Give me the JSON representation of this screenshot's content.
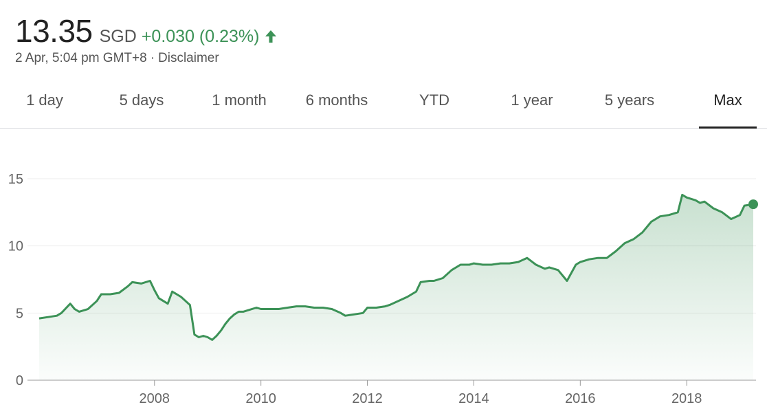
{
  "quote": {
    "price": "13.35",
    "currency": "SGD",
    "change": "+0.030 (0.23%)",
    "direction": "up",
    "timestamp": "2 Apr, 5:04 pm GMT+8",
    "separator": "·",
    "disclaimer": "Disclaimer"
  },
  "colors": {
    "up": "#3c9257",
    "line": "#3c9257",
    "grid": "#eeeeee",
    "axis": "#999999",
    "text": "#222222"
  },
  "tabs": [
    {
      "label": "1 day",
      "active": false
    },
    {
      "label": "5 days",
      "active": false
    },
    {
      "label": "1 month",
      "active": false
    },
    {
      "label": "6 months",
      "active": false
    },
    {
      "label": "YTD",
      "active": false
    },
    {
      "label": "1 year",
      "active": false
    },
    {
      "label": "5 years",
      "active": false
    },
    {
      "label": "Max",
      "active": true
    }
  ],
  "chart_data": {
    "type": "area",
    "title": "",
    "xlabel": "",
    "ylabel": "",
    "ylim": [
      0,
      15
    ],
    "xlim": [
      "2005-11",
      "2019-04"
    ],
    "y_ticks": [
      0,
      5,
      10,
      15
    ],
    "x_ticks": [
      "2008",
      "2010",
      "2012",
      "2014",
      "2016",
      "2018"
    ],
    "grid": true,
    "legend": "none",
    "series": [
      {
        "x": [
          "2005-11",
          "2006-01",
          "2006-03",
          "2006-04",
          "2006-06",
          "2006-07",
          "2006-08",
          "2006-10",
          "2006-12",
          "2007-01",
          "2007-03",
          "2007-05",
          "2007-07",
          "2007-08",
          "2007-10",
          "2007-12",
          "2008-01",
          "2008-02",
          "2008-04",
          "2008-05",
          "2008-07",
          "2008-08",
          "2008-09",
          "2008-10",
          "2008-11",
          "2008-12",
          "2009-01",
          "2009-02",
          "2009-03",
          "2009-04",
          "2009-05",
          "2009-06",
          "2009-07",
          "2009-08",
          "2009-09",
          "2009-10",
          "2009-12",
          "2010-01",
          "2010-03",
          "2010-05",
          "2010-07",
          "2010-09",
          "2010-11",
          "2011-01",
          "2011-03",
          "2011-05",
          "2011-07",
          "2011-08",
          "2011-10",
          "2011-12",
          "2012-01",
          "2012-03",
          "2012-05",
          "2012-06",
          "2012-08",
          "2012-10",
          "2012-12",
          "2013-01",
          "2013-03",
          "2013-04",
          "2013-06",
          "2013-08",
          "2013-10",
          "2013-12",
          "2014-01",
          "2014-03",
          "2014-05",
          "2014-07",
          "2014-09",
          "2014-11",
          "2015-01",
          "2015-03",
          "2015-05",
          "2015-06",
          "2015-08",
          "2015-10",
          "2015-12",
          "2016-01",
          "2016-02",
          "2016-03",
          "2016-05",
          "2016-07",
          "2016-09",
          "2016-11",
          "2017-01",
          "2017-03",
          "2017-05",
          "2017-07",
          "2017-09",
          "2017-11",
          "2017-12",
          "2018-01",
          "2018-03",
          "2018-04",
          "2018-05",
          "2018-07",
          "2018-09",
          "2018-11",
          "2019-01",
          "2019-02",
          "2019-04"
        ],
        "values": [
          4.6,
          4.7,
          4.8,
          5.0,
          5.7,
          5.3,
          5.1,
          5.3,
          5.9,
          6.4,
          6.4,
          6.5,
          7.0,
          7.3,
          7.2,
          7.4,
          6.7,
          6.1,
          5.7,
          6.6,
          6.2,
          5.9,
          5.6,
          3.4,
          3.2,
          3.3,
          3.2,
          3.0,
          3.3,
          3.7,
          4.2,
          4.6,
          4.9,
          5.1,
          5.1,
          5.2,
          5.4,
          5.3,
          5.3,
          5.3,
          5.4,
          5.5,
          5.5,
          5.4,
          5.4,
          5.3,
          5.0,
          4.8,
          4.9,
          5.0,
          5.4,
          5.4,
          5.5,
          5.6,
          5.9,
          6.2,
          6.6,
          7.3,
          7.4,
          7.4,
          7.6,
          8.2,
          8.6,
          8.6,
          8.7,
          8.6,
          8.6,
          8.7,
          8.7,
          8.8,
          9.1,
          8.6,
          8.3,
          8.4,
          8.2,
          7.4,
          8.6,
          8.8,
          8.9,
          9.0,
          9.1,
          9.1,
          9.6,
          10.2,
          10.5,
          11.0,
          11.8,
          12.2,
          12.3,
          12.5,
          13.8,
          13.6,
          13.4,
          13.2,
          13.3,
          12.8,
          12.5,
          12.0,
          12.3,
          13.0,
          13.1
        ]
      }
    ]
  }
}
